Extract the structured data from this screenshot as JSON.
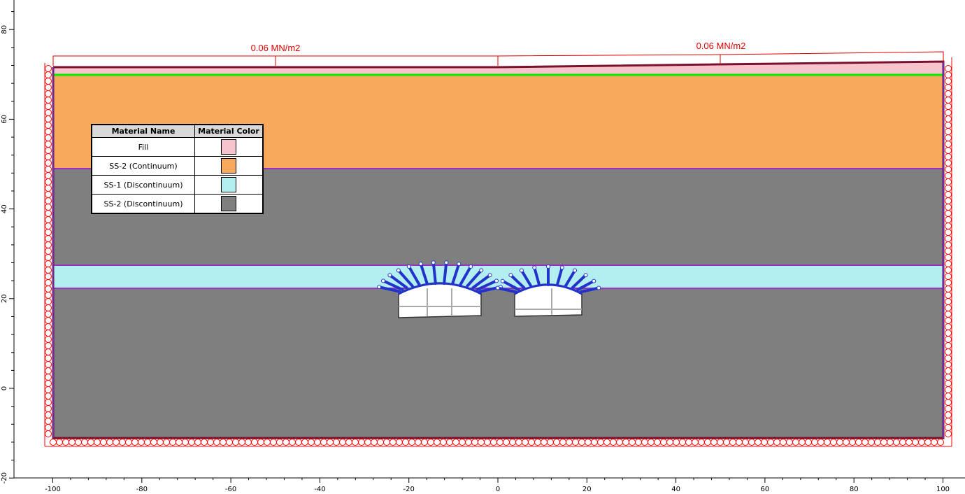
{
  "loads": {
    "left_label": "0.06 MN/m2",
    "right_label": "0.06 MN/m2"
  },
  "legend": {
    "header_name": "Material Name",
    "header_color": "Material Color",
    "rows": [
      {
        "name": "Fill",
        "color": "#f7c3cc"
      },
      {
        "name": "SS-2 (Continuum)",
        "color": "#f9a95c"
      },
      {
        "name": "SS-1 (Discontinuum)",
        "color": "#b3eef0"
      },
      {
        "name": "SS-2 (Discontinuum)",
        "color": "#7f7f7f"
      }
    ]
  },
  "axes": {
    "x_ticks": [
      "-100",
      "-80",
      "-60",
      "-40",
      "-20",
      "0",
      "20",
      "40",
      "60",
      "80",
      "100"
    ],
    "y_ticks": [
      "80",
      "60",
      "40",
      "20",
      "0",
      "-20"
    ]
  },
  "colors": {
    "load_color": "#e00000",
    "boundary_color": "#7a1030",
    "water_table": "#00ee00",
    "layer_boundary": "#9b30c8",
    "bolt_color": "#2233cc",
    "restraint_color": "#ff0000"
  },
  "icons": {
    "restraint": "pin-circle-icon",
    "bolt": "rock-bolt-icon"
  }
}
